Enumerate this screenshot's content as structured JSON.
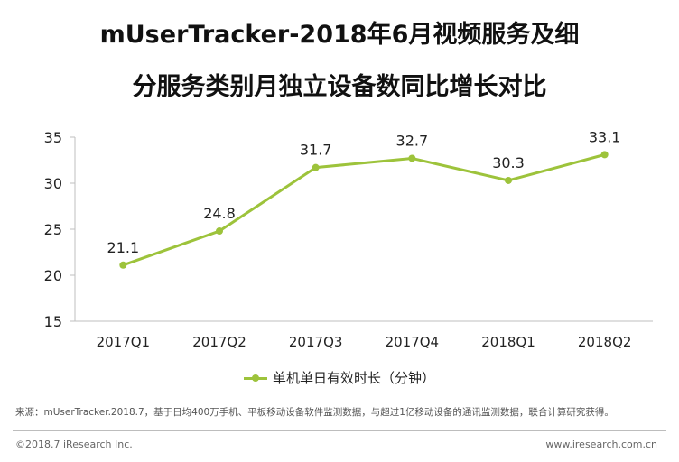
{
  "title_line1": "mUserTracker-2018年6月视频服务及细",
  "title_line2": "分服务类别月独立设备数同比增长对比",
  "chart_data": {
    "type": "line",
    "title": "mUserTracker-2018年6月视频服务及细分服务类别月独立设备数同比增长对比",
    "categories": [
      "2017Q1",
      "2017Q2",
      "2017Q3",
      "2017Q4",
      "2018Q1",
      "2018Q2"
    ],
    "series": [
      {
        "name": "单机单日有效时长（分钟）",
        "values": [
          21.1,
          24.8,
          31.7,
          32.7,
          30.3,
          33.1
        ]
      }
    ],
    "ylim": [
      15,
      35
    ],
    "yticks": [
      15,
      20,
      25,
      30,
      35
    ],
    "xlabel": "",
    "ylabel": "",
    "legend_position": "bottom",
    "grid": false
  },
  "colors": {
    "series": "#9DC33B",
    "axis": "#bfbfbf"
  },
  "legend_label": "单机单日有效时长（分钟）",
  "source_note": "来源：mUserTracker.2018.7，基于日均400万手机、平板移动设备软件监测数据，与超过1亿移动设备的通讯监测数据，联合计算研究获得。",
  "footer_left": "©2018.7 iResearch Inc.",
  "footer_right": "www.iresearch.com.cn"
}
